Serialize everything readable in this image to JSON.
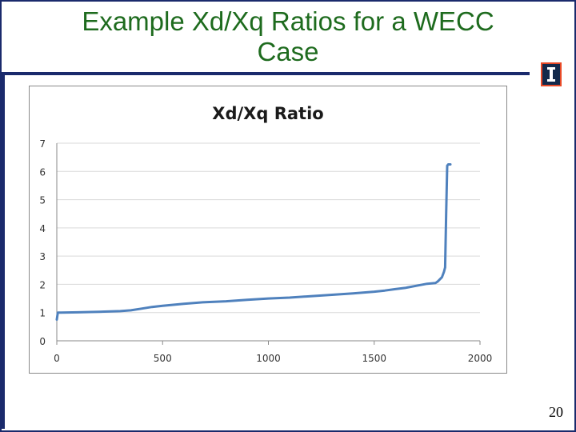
{
  "slide": {
    "title": "Example Xd/Xq Ratios for a WECC Case",
    "page_number": "20"
  },
  "colors": {
    "title": "#1e6b1e",
    "frame": "#1a2a6c",
    "series": "#4f81bd",
    "grid": "#d9d9d9"
  },
  "logo": {
    "icon": "illinois-block-i-icon"
  },
  "chart_data": {
    "type": "line",
    "title": "Xd/Xq Ratio",
    "xlim": [
      0,
      2000
    ],
    "ylim": [
      0,
      7
    ],
    "xticks": [
      0,
      500,
      1000,
      1500,
      2000
    ],
    "yticks": [
      0,
      1,
      2,
      3,
      4,
      5,
      6,
      7
    ],
    "grid": "horizontal",
    "legend": "none",
    "series": [
      {
        "x": [
          0,
          5,
          20,
          100,
          200,
          300,
          350,
          400,
          450,
          500,
          600,
          700,
          800,
          900,
          1000,
          1100,
          1200,
          1300,
          1400,
          1500,
          1550,
          1600,
          1650,
          1700,
          1750,
          1790,
          1800,
          1820,
          1830,
          1835,
          1840,
          1845,
          1850,
          1860
        ],
        "y": [
          0.75,
          1.0,
          1.0,
          1.01,
          1.03,
          1.05,
          1.08,
          1.14,
          1.2,
          1.24,
          1.31,
          1.37,
          1.4,
          1.45,
          1.5,
          1.53,
          1.58,
          1.63,
          1.68,
          1.74,
          1.78,
          1.83,
          1.88,
          1.95,
          2.02,
          2.05,
          2.1,
          2.25,
          2.45,
          2.6,
          4.5,
          6.2,
          6.25,
          6.25
        ]
      }
    ]
  }
}
